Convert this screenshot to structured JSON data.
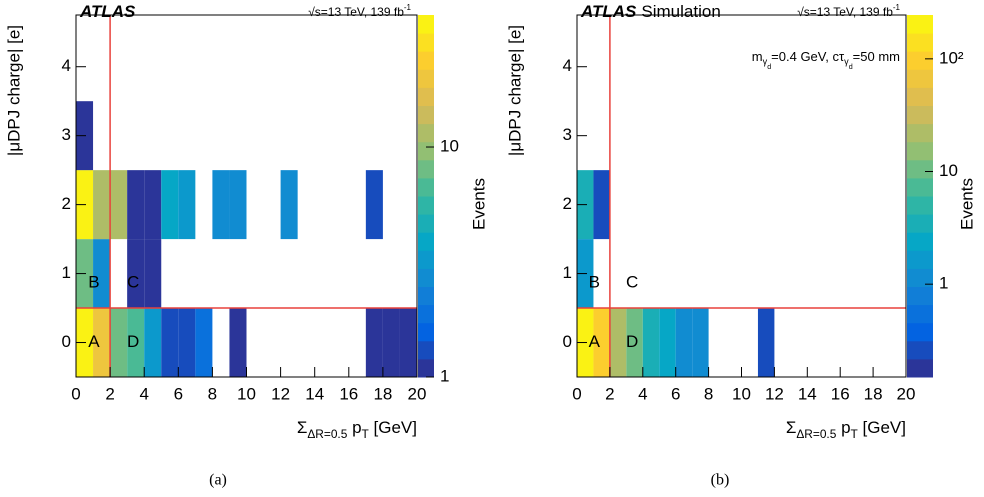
{
  "chart_data": [
    {
      "type": "heatmap",
      "experiment": "ATLAS",
      "energy": {
        "text": "√s=13 TeV, 139 fb",
        "sup": "-1"
      },
      "xlabel": [
        {
          "text": "Σ"
        },
        {
          "text": "ΔR=0.5",
          "level": 1
        },
        {
          "text": " p"
        },
        {
          "text": "T",
          "level": 1
        },
        {
          "text": " [GeV]"
        }
      ],
      "ylabel": "|μDPJ charge| [e]",
      "zlabel": "Events",
      "caption": "(a)",
      "xlim": [
        0,
        20
      ],
      "xticks": [
        0,
        2,
        4,
        6,
        8,
        10,
        12,
        14,
        16,
        18,
        20
      ],
      "ylim": [
        -0.5,
        4.75
      ],
      "yticks": [
        0,
        1,
        2,
        3,
        4
      ],
      "zlim": [
        1,
        37.5
      ],
      "zticks": [
        1,
        10
      ],
      "zscale": "log",
      "region_labels": [
        "A",
        "B",
        "C",
        "D"
      ],
      "cuts": {
        "x": 2,
        "y": 0.5,
        "color": "#e8413c"
      },
      "colormap": [
        "#352a87",
        "#0363e1",
        "#1485d4",
        "#06a7c6",
        "#38b99e",
        "#92bf73",
        "#d9ba56",
        "#fcce2e",
        "#f9fb0e"
      ],
      "cells": [
        {
          "x0": 0,
          "x1": 1,
          "y": 0,
          "value": 35
        },
        {
          "x0": 1,
          "x1": 2,
          "y": 0,
          "value": 20
        },
        {
          "x0": 2,
          "x1": 3,
          "y": 0,
          "value": 8
        },
        {
          "x0": 3,
          "x1": 4,
          "y": 0,
          "value": 7
        },
        {
          "x0": 4,
          "x1": 5,
          "y": 0,
          "value": 3.5
        },
        {
          "x0": 5,
          "x1": 6,
          "y": 0,
          "value": 1.2
        },
        {
          "x0": 6,
          "x1": 7,
          "y": 0,
          "value": 1.2
        },
        {
          "x0": 7,
          "x1": 8,
          "y": 0,
          "value": 2
        },
        {
          "x0": 9,
          "x1": 10,
          "y": 0,
          "value": 1
        },
        {
          "x0": 17,
          "x1": 18,
          "y": 0,
          "value": 1
        },
        {
          "x0": 18,
          "x1": 19,
          "y": 0,
          "value": 1
        },
        {
          "x0": 19,
          "x1": 20,
          "y": 0,
          "value": 1
        },
        {
          "x0": 0,
          "x1": 1,
          "y": 1,
          "value": 8
        },
        {
          "x0": 1,
          "x1": 2,
          "y": 1,
          "value": 2.5
        },
        {
          "x0": 3,
          "x1": 4,
          "y": 1,
          "value": 1
        },
        {
          "x0": 4,
          "x1": 5,
          "y": 1,
          "value": 1
        },
        {
          "x0": 0,
          "x1": 1,
          "y": 2,
          "value": 35
        },
        {
          "x0": 1,
          "x1": 2,
          "y": 2,
          "value": 12
        },
        {
          "x0": 2,
          "x1": 3,
          "y": 2,
          "value": 12
        },
        {
          "x0": 3,
          "x1": 4,
          "y": 2,
          "value": 1
        },
        {
          "x0": 4,
          "x1": 5,
          "y": 2,
          "value": 1
        },
        {
          "x0": 5,
          "x1": 6,
          "y": 2,
          "value": 4
        },
        {
          "x0": 6,
          "x1": 7,
          "y": 2,
          "value": 3
        },
        {
          "x0": 8,
          "x1": 9,
          "y": 2,
          "value": 2.5
        },
        {
          "x0": 9,
          "x1": 10,
          "y": 2,
          "value": 2.5
        },
        {
          "x0": 12,
          "x1": 13,
          "y": 2,
          "value": 2.5
        },
        {
          "x0": 17,
          "x1": 18,
          "y": 2,
          "value": 1.3
        },
        {
          "x0": 0,
          "x1": 1,
          "y": 3,
          "value": 1
        }
      ]
    },
    {
      "type": "heatmap",
      "experiment": "ATLAS",
      "label": "Simulation",
      "energy": {
        "text": "√s=13 TeV, 139 fb",
        "sup": "-1"
      },
      "annotation": [
        {
          "text": "m"
        },
        {
          "text": "γ",
          "level": 1
        },
        {
          "text": "d",
          "level": 2
        },
        {
          "text": "=0.4 GeV, cτ"
        },
        {
          "text": "γ",
          "level": 1
        },
        {
          "text": "d",
          "level": 2
        },
        {
          "text": "=50 mm"
        }
      ],
      "xlabel": [
        {
          "text": "Σ"
        },
        {
          "text": "ΔR=0.5",
          "level": 1
        },
        {
          "text": " p"
        },
        {
          "text": "T",
          "level": 1
        },
        {
          "text": " [GeV]"
        }
      ],
      "ylabel": "|μDPJ charge| [e]",
      "zlabel": "Events",
      "caption": "(b)",
      "xlim": [
        0,
        20
      ],
      "xticks": [
        0,
        2,
        4,
        6,
        8,
        10,
        12,
        14,
        16,
        18,
        20
      ],
      "ylim": [
        -0.5,
        4.75
      ],
      "yticks": [
        0,
        1,
        2,
        3,
        4
      ],
      "zlim": [
        0.15,
        245
      ],
      "zticks": [
        1,
        10,
        {
          "value": 100,
          "label": "10²"
        }
      ],
      "zscale": "log",
      "region_labels": [
        "A",
        "B",
        "C",
        "D"
      ],
      "cuts": {
        "x": 2,
        "y": 0.5,
        "color": "#e8413c"
      },
      "colormap": [
        "#352a87",
        "#0363e1",
        "#1485d4",
        "#06a7c6",
        "#38b99e",
        "#92bf73",
        "#d9ba56",
        "#fcce2e",
        "#f9fb0e"
      ],
      "cells": [
        {
          "x0": 0,
          "x1": 1,
          "y": 0,
          "value": 200
        },
        {
          "x0": 1,
          "x1": 2,
          "y": 0,
          "value": 100
        },
        {
          "x0": 2,
          "x1": 3,
          "y": 0,
          "value": 25
        },
        {
          "x0": 3,
          "x1": 4,
          "y": 0,
          "value": 9
        },
        {
          "x0": 4,
          "x1": 5,
          "y": 0,
          "value": 4
        },
        {
          "x0": 5,
          "x1": 6,
          "y": 0,
          "value": 2
        },
        {
          "x0": 6,
          "x1": 7,
          "y": 0,
          "value": 1.2
        },
        {
          "x0": 7,
          "x1": 8,
          "y": 0,
          "value": 1
        },
        {
          "x0": 11,
          "x1": 12,
          "y": 0,
          "value": 0.3
        },
        {
          "x0": 0,
          "x1": 1,
          "y": 1,
          "value": 1.5
        },
        {
          "x0": 0,
          "x1": 1,
          "y": 2,
          "value": 4
        },
        {
          "x0": 1,
          "x1": 2,
          "y": 2,
          "value": 0.3
        }
      ]
    }
  ]
}
